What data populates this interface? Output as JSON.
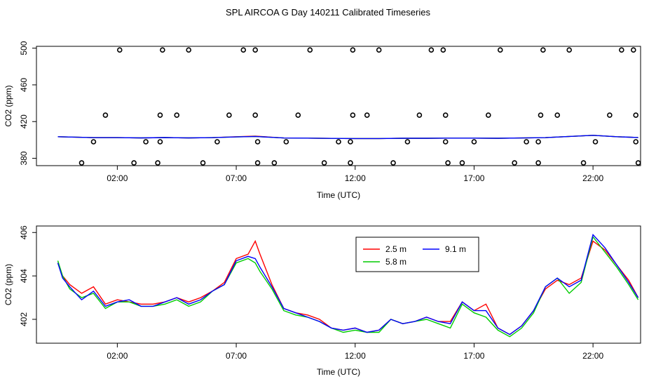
{
  "title": "SPL AIRCOA G  Day 140211  Calibrated Timeseries",
  "chart_data": [
    {
      "type": "scatter",
      "name": "calibration-points",
      "xlabel": "Time (UTC)",
      "ylabel": "CO2 (ppm)",
      "xlim": [
        -1.4,
        24.0
      ],
      "ylim": [
        372,
        502
      ],
      "x_ticks": [
        2,
        7,
        12,
        17,
        22
      ],
      "x_tick_labels": [
        "02:00",
        "07:00",
        "12:00",
        "17:00",
        "22:00"
      ],
      "y_ticks": [
        380,
        420,
        460,
        500
      ],
      "y_tick_labels": [
        "380",
        "420",
        "460",
        "500"
      ],
      "points": [
        [
          0.5,
          375
        ],
        [
          1.0,
          398
        ],
        [
          1.5,
          427
        ],
        [
          2.1,
          498
        ],
        [
          2.7,
          375
        ],
        [
          3.2,
          398
        ],
        [
          3.7,
          375
        ],
        [
          3.8,
          398
        ],
        [
          3.8,
          427
        ],
        [
          3.9,
          498
        ],
        [
          4.5,
          427
        ],
        [
          5.0,
          498
        ],
        [
          5.6,
          375
        ],
        [
          6.2,
          398
        ],
        [
          6.7,
          427
        ],
        [
          7.3,
          498
        ],
        [
          7.8,
          498
        ],
        [
          7.8,
          427
        ],
        [
          7.9,
          398
        ],
        [
          7.9,
          375
        ],
        [
          8.6,
          375
        ],
        [
          9.1,
          398
        ],
        [
          9.6,
          427
        ],
        [
          10.1,
          498
        ],
        [
          10.7,
          375
        ],
        [
          11.3,
          398
        ],
        [
          11.8,
          398
        ],
        [
          11.8,
          375
        ],
        [
          11.9,
          427
        ],
        [
          11.9,
          498
        ],
        [
          12.5,
          427
        ],
        [
          13.0,
          498
        ],
        [
          13.6,
          375
        ],
        [
          14.2,
          398
        ],
        [
          14.7,
          427
        ],
        [
          15.2,
          498
        ],
        [
          15.7,
          498
        ],
        [
          15.8,
          427
        ],
        [
          15.8,
          398
        ],
        [
          15.9,
          375
        ],
        [
          16.5,
          375
        ],
        [
          17.0,
          398
        ],
        [
          17.6,
          427
        ],
        [
          18.1,
          498
        ],
        [
          18.7,
          375
        ],
        [
          19.2,
          398
        ],
        [
          19.7,
          398
        ],
        [
          19.7,
          375
        ],
        [
          19.8,
          427
        ],
        [
          19.9,
          498
        ],
        [
          20.5,
          427
        ],
        [
          21.0,
          498
        ],
        [
          21.6,
          375
        ],
        [
          22.1,
          398
        ],
        [
          22.7,
          427
        ],
        [
          23.2,
          498
        ],
        [
          23.7,
          498
        ],
        [
          23.8,
          427
        ],
        [
          23.8,
          398
        ],
        [
          23.9,
          375
        ]
      ],
      "series": [
        {
          "name": "2.5 m",
          "color": "#ff0000",
          "x": [
            -0.5,
            1,
            2,
            3,
            4,
            5,
            6,
            7,
            7.8,
            9,
            10,
            11,
            12,
            13,
            14,
            15,
            16,
            17,
            18,
            19,
            20,
            21,
            22,
            23,
            23.9
          ],
          "values": [
            403.5,
            402.5,
            402.5,
            402.2,
            402.6,
            402.2,
            402.5,
            403.5,
            404.2,
            402.1,
            402,
            401.7,
            401.5,
            401.5,
            401.8,
            401.8,
            402,
            402,
            401.8,
            402.1,
            402.5,
            403.8,
            405,
            403.5,
            402.7
          ]
        },
        {
          "name": "5.8 m",
          "color": "#00cc00",
          "x": [
            -0.5,
            1,
            2,
            3,
            4,
            5,
            6,
            7,
            7.8,
            9,
            10,
            11,
            12,
            13,
            14,
            15,
            16,
            17,
            18,
            19,
            20,
            21,
            22,
            23,
            23.9
          ],
          "values": [
            403.5,
            402.5,
            402.5,
            402.2,
            402.6,
            402.2,
            402.5,
            403.3,
            403.8,
            402.1,
            402,
            401.7,
            401.5,
            401.5,
            401.8,
            401.8,
            402,
            402,
            401.8,
            402.1,
            402.5,
            403.8,
            405,
            403.5,
            402.7
          ]
        },
        {
          "name": "9.1 m",
          "color": "#0000ff",
          "x": [
            -0.5,
            1,
            2,
            3,
            4,
            5,
            6,
            7,
            7.8,
            9,
            10,
            11,
            12,
            13,
            14,
            15,
            16,
            17,
            18,
            19,
            20,
            21,
            22,
            23,
            23.9
          ],
          "values": [
            403.5,
            402.5,
            402.5,
            402.2,
            402.6,
            402.2,
            402.5,
            403.3,
            403.8,
            402.1,
            402,
            401.7,
            401.5,
            401.5,
            401.8,
            401.8,
            402,
            402,
            401.8,
            402.1,
            402.5,
            403.8,
            405,
            403.5,
            402.7
          ]
        }
      ]
    },
    {
      "type": "line",
      "name": "inlet-heights",
      "xlabel": "Time (UTC)",
      "ylabel": "CO2 (ppm)",
      "xlim": [
        -1.4,
        24.0
      ],
      "ylim": [
        400.9,
        406.3
      ],
      "x_ticks": [
        2,
        7,
        12,
        17,
        22
      ],
      "x_tick_labels": [
        "02:00",
        "07:00",
        "12:00",
        "17:00",
        "22:00"
      ],
      "y_ticks": [
        402,
        404,
        406
      ],
      "y_tick_labels": [
        "402",
        "404",
        "406"
      ],
      "legend": {
        "placement": "top-center",
        "entries": [
          "2.5 m",
          "9.1 m",
          "5.8 m"
        ]
      },
      "x": [
        -0.5,
        -0.3,
        0,
        0.5,
        1,
        1.5,
        2,
        2.5,
        3,
        3.5,
        4,
        4.5,
        5,
        5.5,
        6,
        6.5,
        7,
        7.5,
        7.8,
        8,
        8.5,
        9,
        9.5,
        10,
        10.5,
        11,
        11.5,
        12,
        12.5,
        13,
        13.5,
        14,
        14.5,
        15,
        15.5,
        16,
        16.5,
        17,
        17.5,
        18,
        18.5,
        19,
        19.5,
        20,
        20.5,
        21,
        21.5,
        22,
        22.5,
        23,
        23.5,
        23.9
      ],
      "series": [
        {
          "name": "2.5 m",
          "color": "#ff0000",
          "values": [
            404.6,
            404.0,
            403.6,
            403.2,
            403.5,
            402.7,
            402.9,
            402.8,
            402.7,
            402.7,
            402.8,
            403.0,
            402.8,
            403.0,
            403.3,
            403.7,
            404.8,
            405.0,
            405.6,
            405.0,
            403.6,
            402.5,
            402.3,
            402.2,
            402.0,
            401.6,
            401.5,
            401.6,
            401.4,
            401.5,
            402.0,
            401.8,
            401.9,
            402.1,
            401.9,
            401.9,
            402.8,
            402.4,
            402.7,
            401.6,
            401.3,
            401.7,
            402.4,
            403.4,
            403.8,
            403.6,
            403.9,
            405.6,
            405.2,
            404.5,
            403.8,
            403.0
          ]
        },
        {
          "name": "5.8 m",
          "color": "#00cc00",
          "values": [
            404.7,
            404.0,
            403.4,
            403.0,
            403.2,
            402.5,
            402.8,
            402.8,
            402.6,
            402.6,
            402.7,
            402.9,
            402.6,
            402.8,
            403.3,
            403.6,
            404.6,
            404.8,
            404.6,
            404.2,
            403.4,
            402.4,
            402.2,
            402.1,
            401.9,
            401.6,
            401.4,
            401.5,
            401.4,
            401.4,
            402.0,
            401.8,
            401.9,
            402.0,
            401.8,
            401.6,
            402.7,
            402.3,
            402.1,
            401.5,
            401.2,
            401.6,
            402.3,
            403.5,
            403.9,
            403.2,
            403.7,
            405.8,
            405.1,
            404.4,
            403.6,
            402.9
          ]
        },
        {
          "name": "9.1 m",
          "color": "#0000ff",
          "values": [
            404.6,
            403.9,
            403.5,
            402.9,
            403.3,
            402.6,
            402.8,
            402.9,
            402.6,
            402.6,
            402.8,
            403.0,
            402.7,
            402.9,
            403.3,
            403.6,
            404.7,
            404.9,
            404.8,
            404.4,
            403.5,
            402.5,
            402.3,
            402.1,
            401.9,
            401.6,
            401.5,
            401.6,
            401.4,
            401.5,
            402.0,
            401.8,
            401.9,
            402.1,
            401.9,
            401.8,
            402.8,
            402.4,
            402.4,
            401.6,
            401.3,
            401.7,
            402.4,
            403.5,
            403.9,
            403.5,
            403.8,
            405.9,
            405.3,
            404.5,
            403.7,
            403.0
          ]
        }
      ]
    }
  ]
}
